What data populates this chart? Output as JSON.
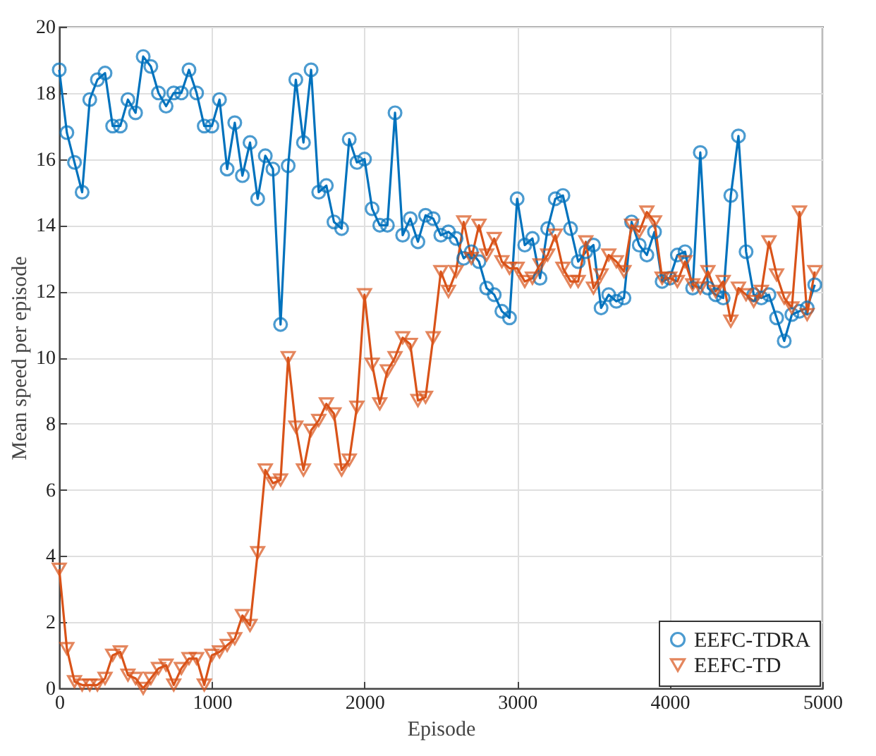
{
  "chart_data": {
    "type": "line",
    "xlabel": "Episode",
    "ylabel": "Mean speed per episode",
    "x": [
      0,
      50,
      100,
      150,
      200,
      250,
      300,
      350,
      400,
      450,
      500,
      550,
      600,
      650,
      700,
      750,
      800,
      850,
      900,
      950,
      1000,
      1050,
      1100,
      1150,
      1200,
      1250,
      1300,
      1350,
      1400,
      1450,
      1500,
      1550,
      1600,
      1650,
      1700,
      1750,
      1800,
      1850,
      1900,
      1950,
      2000,
      2050,
      2100,
      2150,
      2200,
      2250,
      2300,
      2350,
      2400,
      2450,
      2500,
      2550,
      2600,
      2650,
      2700,
      2750,
      2800,
      2850,
      2900,
      2950,
      3000,
      3050,
      3100,
      3150,
      3200,
      3250,
      3300,
      3350,
      3400,
      3450,
      3500,
      3550,
      3600,
      3650,
      3700,
      3750,
      3800,
      3850,
      3900,
      3950,
      4000,
      4050,
      4100,
      4150,
      4200,
      4250,
      4300,
      4350,
      4400,
      4450,
      4500,
      4550,
      4600,
      4650,
      4700,
      4750,
      4800,
      4850,
      4900,
      4950
    ],
    "series": [
      {
        "name": "EEFC-TDRA",
        "color": "#0072bd",
        "marker": "circle",
        "values": [
          18.7,
          16.8,
          15.9,
          15.0,
          17.8,
          18.4,
          18.6,
          17.0,
          17.0,
          17.8,
          17.4,
          19.1,
          18.8,
          18.0,
          17.6,
          18.0,
          18.0,
          18.7,
          18.0,
          17.0,
          17.0,
          17.8,
          15.7,
          17.1,
          15.5,
          16.5,
          14.8,
          16.1,
          15.7,
          11.0,
          15.8,
          18.4,
          16.5,
          18.7,
          15.0,
          15.2,
          14.1,
          13.9,
          16.6,
          15.9,
          16.0,
          14.5,
          14.0,
          14.0,
          17.4,
          13.7,
          14.2,
          13.5,
          14.3,
          14.2,
          13.7,
          13.8,
          13.6,
          13.0,
          13.2,
          12.9,
          12.1,
          11.9,
          11.4,
          11.2,
          14.8,
          13.4,
          13.6,
          12.4,
          13.9,
          14.8,
          14.9,
          13.9,
          12.9,
          13.2,
          13.4,
          11.5,
          11.9,
          11.7,
          11.8,
          14.1,
          13.4,
          13.1,
          13.8,
          12.3,
          12.4,
          13.1,
          13.2,
          12.1,
          16.2,
          12.1,
          11.9,
          11.8,
          14.9,
          16.7,
          13.2,
          11.9,
          11.8,
          11.9,
          11.2,
          10.5,
          11.3,
          11.4,
          11.5,
          12.2
        ]
      },
      {
        "name": "EEFC-TD",
        "color": "#d95319",
        "marker": "triangle",
        "values": [
          3.6,
          1.2,
          0.2,
          0.1,
          0.1,
          0.1,
          0.3,
          1.0,
          1.1,
          0.4,
          0.3,
          0.0,
          0.3,
          0.6,
          0.7,
          0.1,
          0.6,
          0.9,
          0.9,
          0.1,
          1.0,
          1.1,
          1.3,
          1.5,
          2.2,
          1.9,
          4.1,
          6.6,
          6.2,
          6.3,
          10.0,
          7.9,
          6.6,
          7.8,
          8.1,
          8.6,
          8.3,
          6.6,
          6.9,
          8.5,
          11.9,
          9.8,
          8.6,
          9.6,
          10.0,
          10.6,
          10.4,
          8.7,
          8.8,
          10.6,
          12.6,
          12.0,
          12.6,
          14.1,
          13.0,
          14.0,
          13.1,
          13.6,
          12.9,
          12.7,
          12.7,
          12.3,
          12.4,
          12.8,
          13.1,
          13.7,
          12.7,
          12.3,
          12.3,
          13.5,
          12.1,
          12.5,
          13.1,
          12.9,
          12.6,
          14.0,
          13.8,
          14.4,
          14.1,
          12.4,
          12.4,
          12.3,
          12.9,
          12.2,
          12.1,
          12.6,
          12.0,
          12.3,
          11.1,
          12.1,
          11.9,
          11.7,
          12.0,
          13.5,
          12.5,
          11.8,
          11.5,
          14.4,
          11.3,
          12.6
        ]
      }
    ],
    "xlim": [
      0,
      5000
    ],
    "xticks": [
      0,
      1000,
      2000,
      3000,
      4000,
      5000
    ],
    "ylim": [
      0,
      20
    ],
    "yticks": [
      0,
      2,
      4,
      6,
      8,
      10,
      12,
      14,
      16,
      18,
      20
    ],
    "grid": true,
    "legend": "bottom right",
    "line_style": "solid"
  }
}
